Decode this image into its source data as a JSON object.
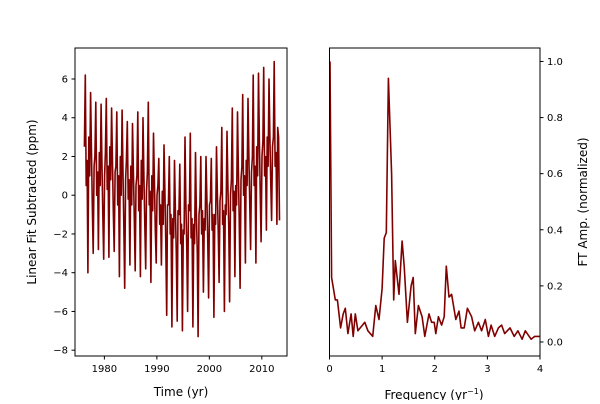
{
  "chart_data": [
    {
      "type": "line",
      "title": "",
      "xlabel": "Time (yr)",
      "ylabel": "Linear Fit Subtracted (ppm)",
      "xlim": [
        1974.4,
        2014.8
      ],
      "ylim": [
        -8.3,
        7.6
      ],
      "xticks": [
        1980,
        1990,
        2000,
        2010
      ],
      "xtick_labels": [
        "1980",
        "1990",
        "2000",
        "2010"
      ],
      "yticks": [
        6,
        4,
        2,
        0,
        -2,
        -4,
        -6,
        -8
      ],
      "ytick_labels": [
        "6",
        "4",
        "2",
        "0",
        "−2",
        "−4",
        "−6",
        "−8"
      ],
      "grid": false,
      "color": "#800000",
      "x_start": 1976.2,
      "samples_per_year": 6,
      "y": [
        2.5,
        6.2,
        0.5,
        1.8,
        -4.0,
        3.0,
        1.0,
        5.3,
        2.5,
        -0.5,
        -3.0,
        1.5,
        2.0,
        4.8,
        0.0,
        1.2,
        -2.8,
        2.2,
        0.5,
        4.7,
        1.8,
        -1.0,
        -3.3,
        1.0,
        2.2,
        5.0,
        0.3,
        1.5,
        -3.2,
        2.5,
        0.8,
        4.5,
        2.0,
        -0.8,
        -2.9,
        1.2,
        1.5,
        4.3,
        -0.5,
        1.0,
        -4.2,
        2.0,
        0.0,
        4.4,
        1.5,
        -1.5,
        -4.8,
        0.8,
        1.8,
        3.8,
        -0.2,
        0.8,
        -3.6,
        1.5,
        -0.5,
        3.7,
        1.2,
        -1.2,
        -3.9,
        0.5,
        1.0,
        4.3,
        -0.8,
        0.5,
        -4.2,
        1.8,
        -0.2,
        4.0,
        1.0,
        -1.5,
        -3.8,
        0.2,
        1.2,
        4.8,
        -0.5,
        0.2,
        -4.5,
        1.0,
        -0.8,
        3.2,
        0.8,
        -1.8,
        -3.5,
        0.0,
        0.5,
        1.9,
        -1.5,
        -0.5,
        -3.6,
        0.2,
        -1.5,
        2.6,
        0.2,
        -2.5,
        -6.2,
        -0.5,
        -0.5,
        2.0,
        -2.0,
        -1.0,
        -6.8,
        -1.2,
        -2.2,
        1.8,
        -0.8,
        -3.0,
        -6.5,
        -0.8,
        -1.0,
        1.6,
        -2.5,
        -1.5,
        -7.0,
        -1.8,
        -2.0,
        3.0,
        -0.5,
        -2.8,
        -6.0,
        -0.5,
        -0.8,
        3.2,
        -2.2,
        -1.2,
        -6.8,
        -1.5,
        -2.5,
        2.2,
        -1.0,
        -3.0,
        -7.3,
        -1.0,
        -0.5,
        2.0,
        -2.0,
        -0.8,
        -5.0,
        -1.2,
        -1.8,
        2.0,
        -0.2,
        -2.5,
        -5.3,
        -0.5,
        -0.3,
        1.9,
        -1.8,
        -1.0,
        -6.3,
        -1.0,
        -1.5,
        2.5,
        0.0,
        -2.0,
        -4.5,
        -0.3,
        0.2,
        3.5,
        -1.5,
        -0.8,
        -6.0,
        -0.5,
        -1.0,
        3.3,
        0.5,
        -1.8,
        -5.5,
        0.0,
        0.8,
        4.5,
        -0.8,
        0.2,
        -4.2,
        0.5,
        -0.5,
        4.3,
        1.2,
        -1.2,
        -4.8,
        0.8,
        1.5,
        5.2,
        0.0,
        1.0,
        -3.5,
        1.8,
        0.5,
        5.0,
        2.0,
        -0.3,
        -2.8,
        1.2,
        2.0,
        6.2,
        0.5,
        1.5,
        -3.5,
        2.5,
        1.0,
        6.3,
        2.8,
        0.2,
        -2.4,
        2.0,
        2.8,
        6.6,
        1.0,
        2.0,
        -1.8,
        3.0,
        1.5,
        6.0,
        3.0,
        0.8,
        -1.3,
        2.5,
        3.0,
        6.9,
        1.5,
        2.2,
        -1.5,
        3.5,
        3.0,
        -1.3
      ]
    },
    {
      "type": "line",
      "title": "",
      "xlabel_main": "Frequency (yr",
      "xlabel_sup": "−1",
      "xlabel_end": ")",
      "ylabel": "FT Amp. (normalized)",
      "ylabel_position": "right",
      "xlim": [
        0,
        4
      ],
      "ylim": [
        -0.05,
        1.048
      ],
      "xticks": [
        0,
        1,
        2,
        3,
        4
      ],
      "xtick_labels": [
        "0",
        "1",
        "2",
        "3",
        "4"
      ],
      "yticks": [
        0.0,
        0.2,
        0.4,
        0.6,
        0.8,
        1.0
      ],
      "ytick_labels": [
        "0.0",
        "0.2",
        "0.4",
        "0.6",
        "0.8",
        "1.0"
      ],
      "grid": false,
      "color": "#800000",
      "x": [
        0.01,
        0.04,
        0.11,
        0.15,
        0.21,
        0.26,
        0.3,
        0.35,
        0.41,
        0.45,
        0.49,
        0.54,
        0.67,
        0.73,
        0.82,
        0.88,
        0.94,
        1.0,
        1.04,
        1.08,
        1.12,
        1.18,
        1.22,
        1.25,
        1.32,
        1.38,
        1.42,
        1.48,
        1.55,
        1.59,
        1.63,
        1.69,
        1.76,
        1.81,
        1.89,
        1.94,
        1.99,
        2.02,
        2.07,
        2.13,
        2.18,
        2.22,
        2.27,
        2.32,
        2.4,
        2.46,
        2.5,
        2.56,
        2.62,
        2.7,
        2.76,
        2.83,
        2.89,
        2.96,
        3.02,
        3.07,
        3.14,
        3.21,
        3.27,
        3.33,
        3.43,
        3.51,
        3.58,
        3.66,
        3.72,
        3.83,
        3.9,
        4.0
      ],
      "y": [
        1.0,
        0.23,
        0.15,
        0.15,
        0.05,
        0.1,
        0.12,
        0.03,
        0.1,
        0.02,
        0.1,
        0.04,
        0.07,
        0.04,
        0.02,
        0.13,
        0.08,
        0.19,
        0.37,
        0.39,
        0.94,
        0.6,
        0.15,
        0.29,
        0.17,
        0.36,
        0.27,
        0.07,
        0.2,
        0.23,
        0.03,
        0.13,
        0.09,
        0.02,
        0.1,
        0.07,
        0.07,
        0.03,
        0.09,
        0.06,
        0.09,
        0.27,
        0.16,
        0.17,
        0.08,
        0.11,
        0.05,
        0.05,
        0.12,
        0.09,
        0.04,
        0.07,
        0.04,
        0.08,
        0.02,
        0.06,
        0.02,
        0.05,
        0.06,
        0.03,
        0.05,
        0.02,
        0.04,
        0.01,
        0.04,
        0.01,
        0.02,
        0.02
      ]
    }
  ]
}
